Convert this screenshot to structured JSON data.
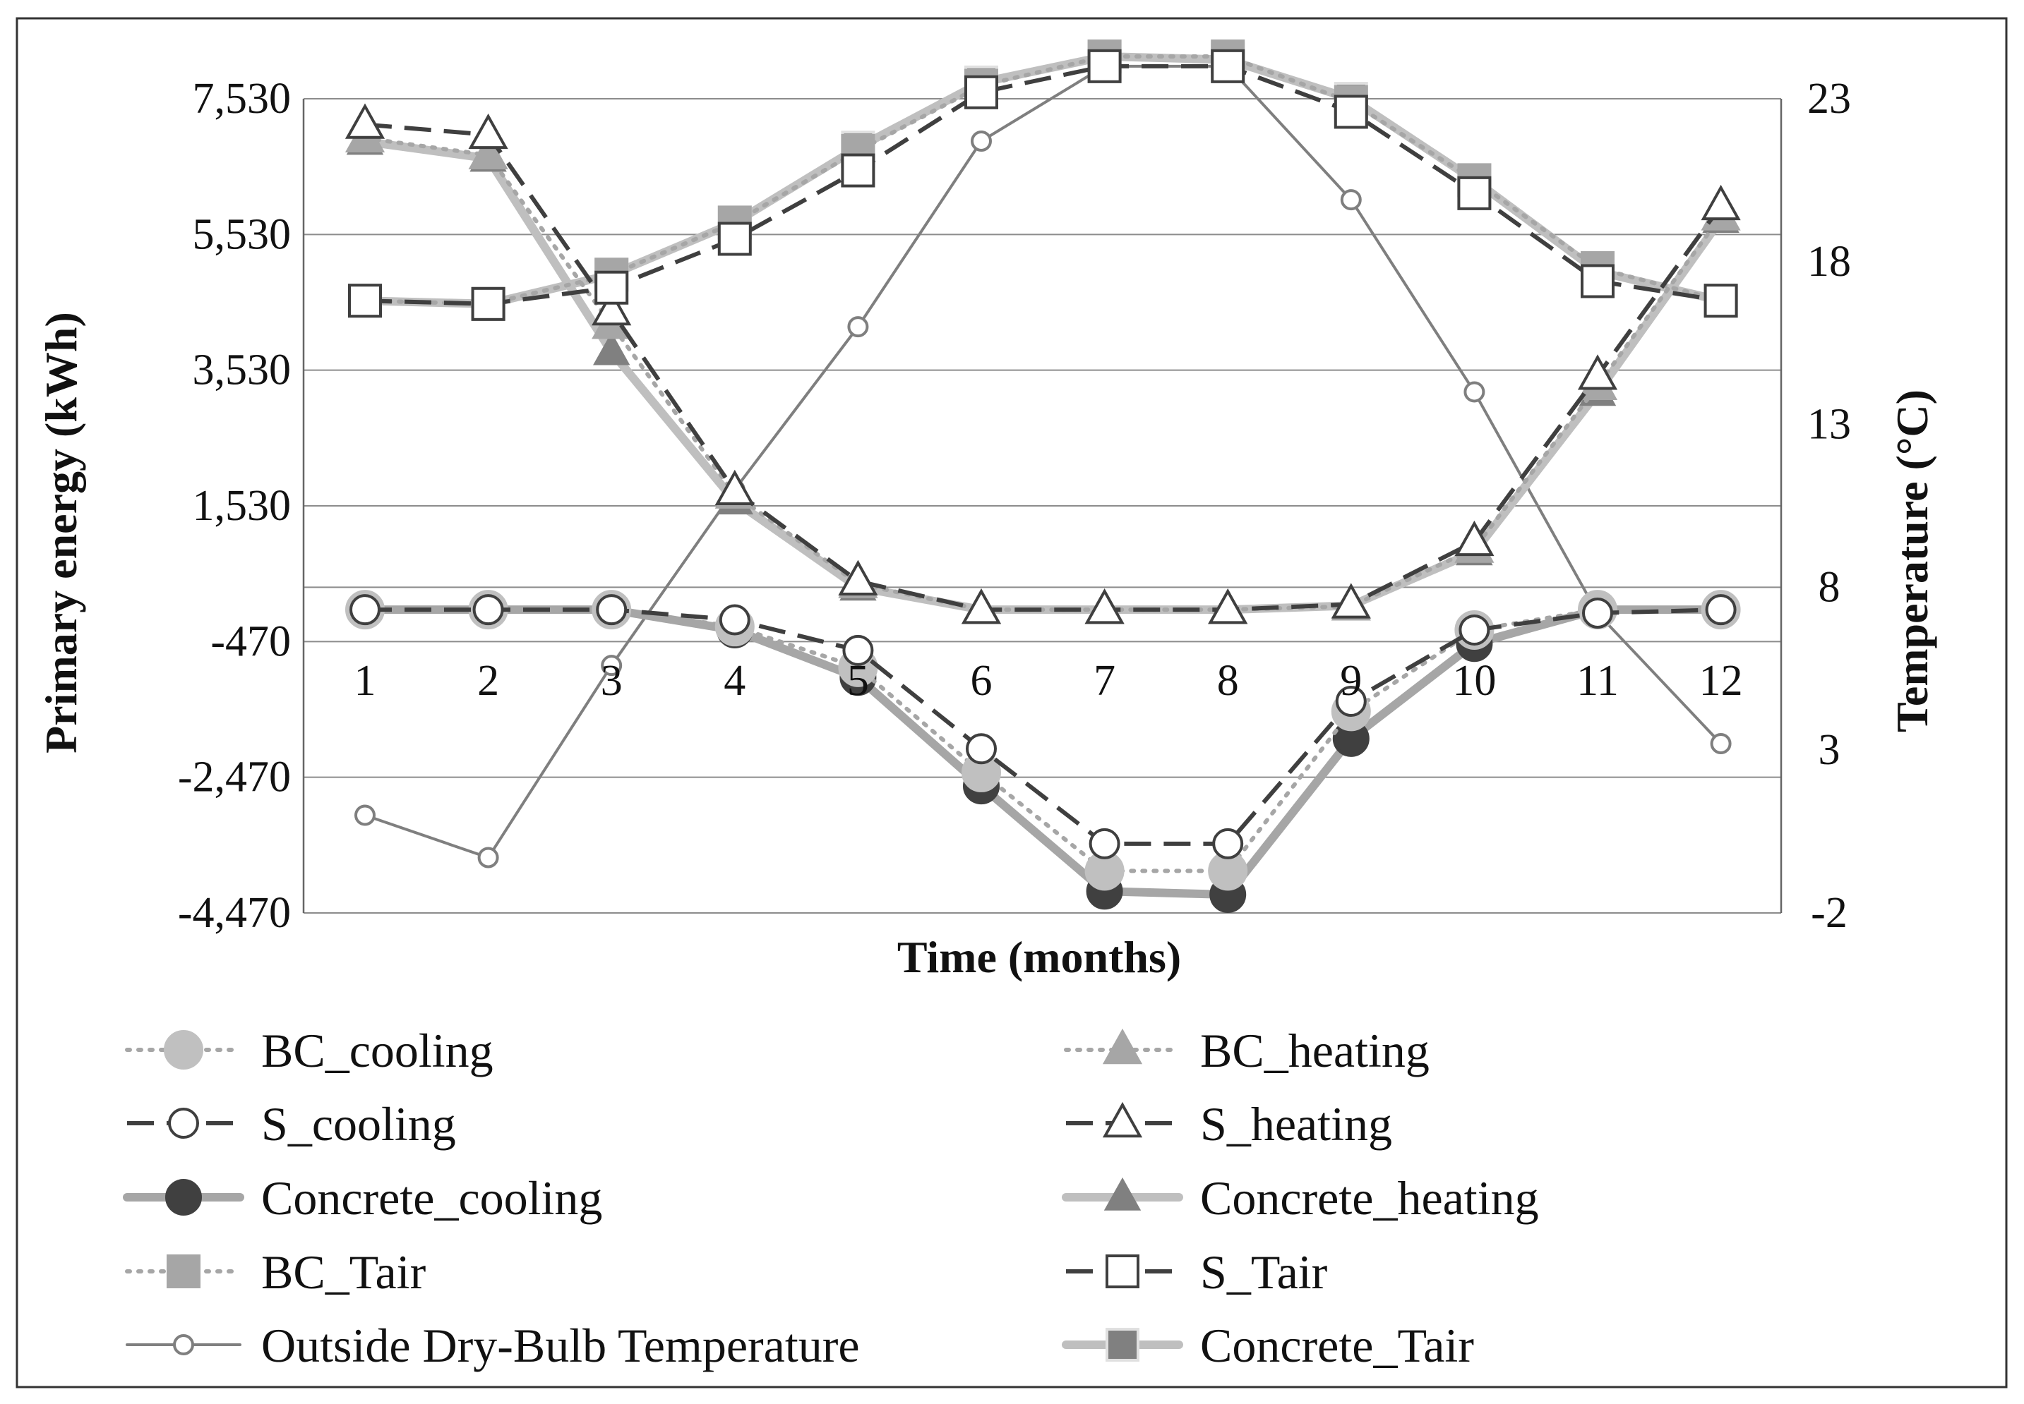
{
  "chart_data": {
    "type": "line",
    "x": [
      1,
      2,
      3,
      4,
      5,
      6,
      7,
      8,
      9,
      10,
      11,
      12
    ],
    "xlabel": "Time   (months)",
    "ylabel": "Primary energy  (kWh)",
    "y2label": "Temperature   (°C)",
    "ylim": [
      -4470,
      7530
    ],
    "y2lim": [
      -2,
      23
    ],
    "yticks": [
      "7,530",
      "5,530",
      "3,530",
      "1,530",
      "-470",
      "-2,470",
      "-4,470"
    ],
    "ytick_values": [
      7530,
      5530,
      3530,
      1530,
      -470,
      -2470,
      -4470
    ],
    "y2ticks": [
      "23",
      "18",
      "13",
      "8",
      "3",
      "-2"
    ],
    "y2tick_values": [
      23,
      18,
      13,
      8,
      3,
      -2
    ],
    "xticks": [
      "1",
      "2",
      "3",
      "4",
      "5",
      "6",
      "7",
      "8",
      "9",
      "10",
      "11",
      "12"
    ],
    "grid": true,
    "legend_position": "bottom",
    "series": [
      {
        "name": "BC_cooling",
        "axis": "left",
        "values": [
          0,
          0,
          0,
          -250,
          -850,
          -2400,
          -3850,
          -3850,
          -1500,
          -300,
          0,
          0
        ]
      },
      {
        "name": "BC_heating",
        "axis": "left",
        "values": [
          6950,
          6700,
          4200,
          1700,
          380,
          0,
          0,
          0,
          50,
          900,
          3300,
          5800
        ]
      },
      {
        "name": "S_cooling",
        "axis": "left",
        "values": [
          0,
          0,
          0,
          -150,
          -600,
          -2050,
          -3450,
          -3450,
          -1350,
          -300,
          -50,
          0
        ]
      },
      {
        "name": "S_heating",
        "axis": "left",
        "values": [
          7150,
          7000,
          4400,
          1750,
          420,
          0,
          0,
          0,
          80,
          1000,
          3450,
          5950
        ]
      },
      {
        "name": "Concrete_cooling",
        "axis": "left",
        "values": [
          0,
          0,
          0,
          -300,
          -1000,
          -2600,
          -4150,
          -4200,
          -1900,
          -500,
          0,
          0
        ]
      },
      {
        "name": "Concrete_heating",
        "axis": "left",
        "values": [
          6900,
          6650,
          3800,
          1600,
          330,
          0,
          0,
          0,
          60,
          850,
          3200,
          5750
        ]
      },
      {
        "name": "BC_Tair",
        "axis": "right",
        "values": [
          16.8,
          16.7,
          17.6,
          19.2,
          21.4,
          23.4,
          24.3,
          24.3,
          22.9,
          20.5,
          17.8,
          16.8
        ]
      },
      {
        "name": "S_Tair",
        "axis": "right",
        "values": [
          16.8,
          16.7,
          17.2,
          18.7,
          20.8,
          23.2,
          24.0,
          24.0,
          22.6,
          20.1,
          17.4,
          16.8
        ]
      },
      {
        "name": "Outside Dry-Bulb Temperature",
        "axis": "right",
        "values": [
          1.0,
          -0.3,
          5.6,
          11.0,
          16.0,
          21.7,
          24.0,
          24.0,
          19.9,
          14.0,
          7.2,
          3.2
        ]
      },
      {
        "name": "Concrete_Tair",
        "axis": "right",
        "values": [
          16.8,
          16.7,
          17.6,
          19.2,
          21.5,
          23.5,
          24.3,
          24.2,
          23.0,
          20.5,
          17.7,
          16.8
        ]
      }
    ],
    "colors": {
      "bc": "#a6a6a6",
      "s": "#3f3f3f",
      "concrete_line": "#bfbfbf",
      "concrete_marker": "#808080",
      "concrete_dark": "#404040",
      "outside": "#7f7f7f",
      "grid": "#8c8c8c",
      "text": "#111111"
    }
  }
}
